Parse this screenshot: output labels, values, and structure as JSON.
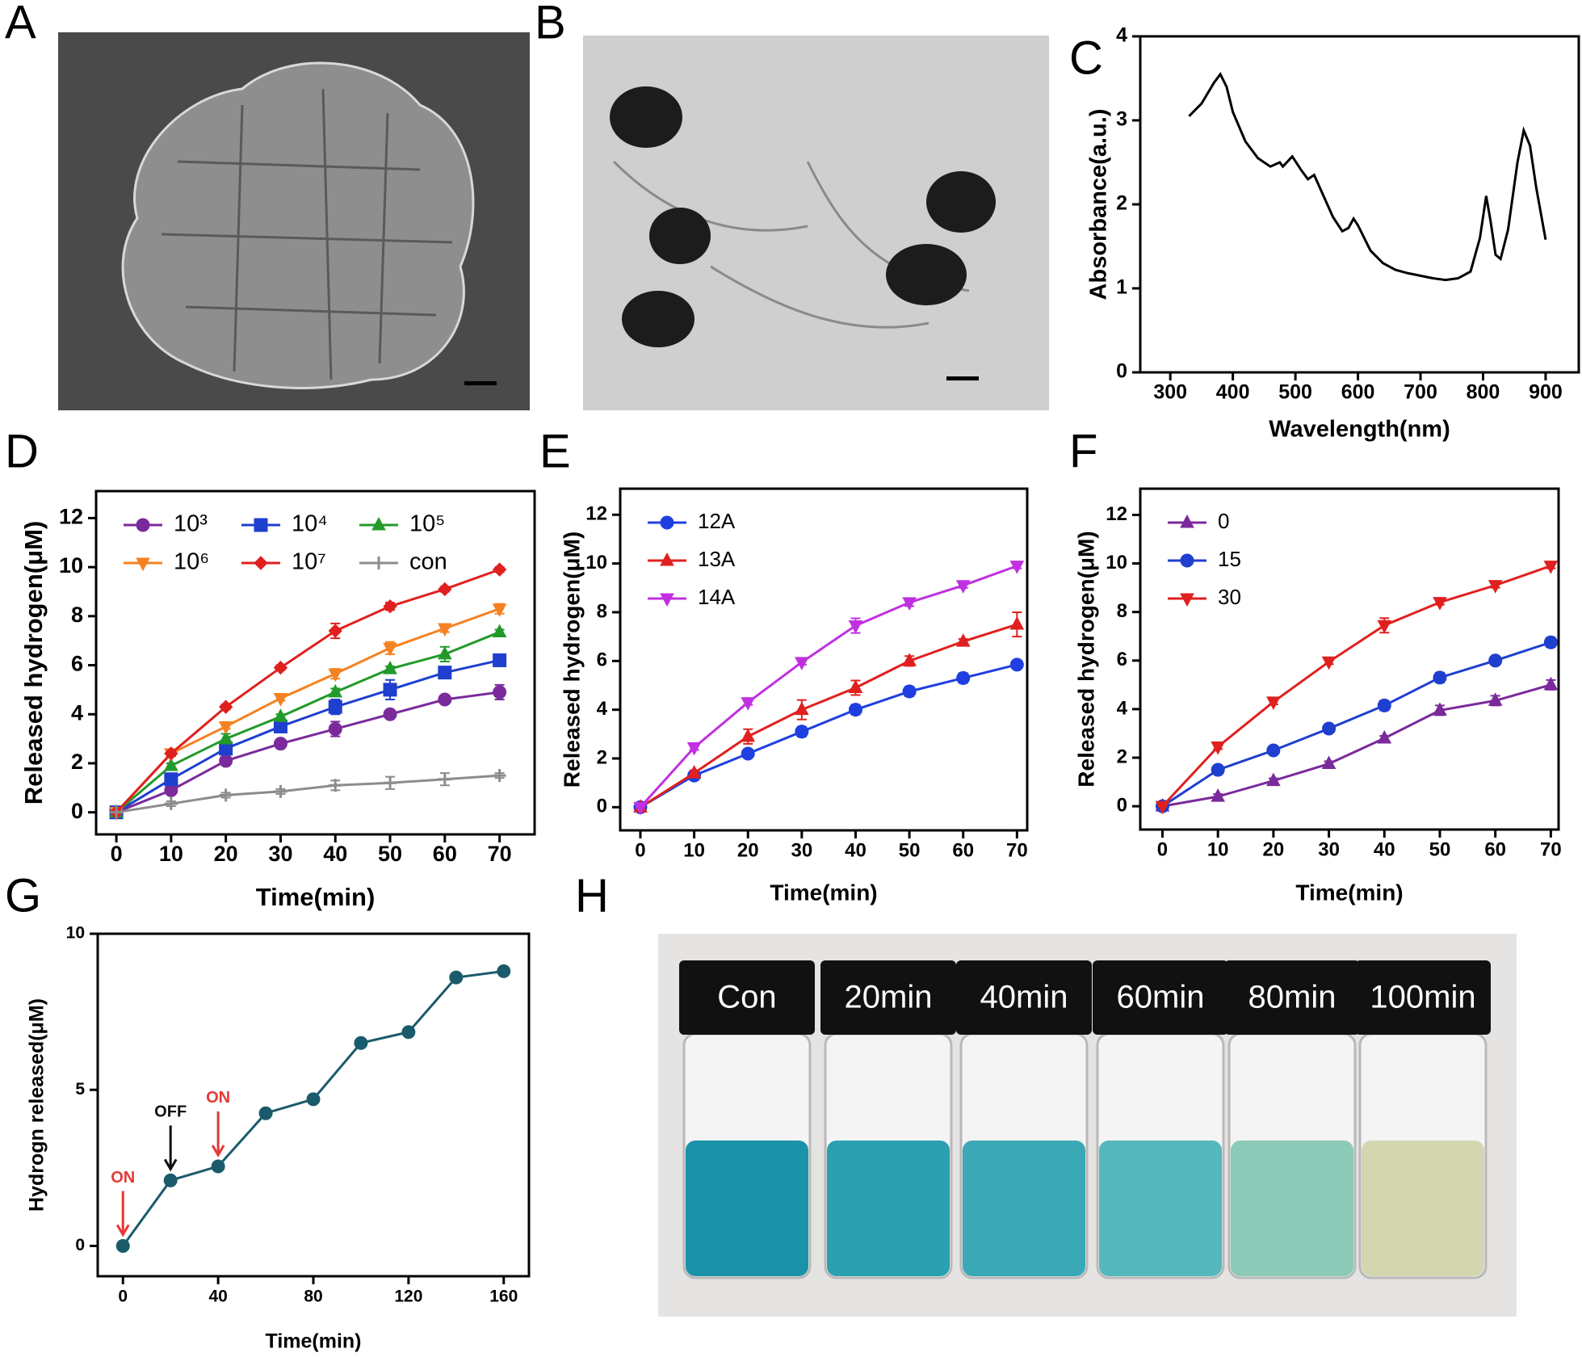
{
  "chart_data": [
    {
      "panel": "C",
      "type": "line",
      "xlabel": "Wavelength(nm)",
      "ylabel": "Absorbance(a.u.)",
      "color": "#000000",
      "x": [
        330,
        350,
        370,
        380,
        390,
        400,
        420,
        440,
        460,
        475,
        480,
        495,
        510,
        520,
        530,
        545,
        560,
        575,
        585,
        593,
        600,
        620,
        640,
        660,
        680,
        700,
        720,
        740,
        760,
        780,
        795,
        805,
        812,
        820,
        828,
        840,
        855,
        865,
        875,
        885,
        900
      ],
      "values": [
        3.05,
        3.2,
        3.45,
        3.55,
        3.4,
        3.1,
        2.75,
        2.55,
        2.45,
        2.5,
        2.45,
        2.57,
        2.4,
        2.3,
        2.35,
        2.1,
        1.85,
        1.68,
        1.72,
        1.83,
        1.75,
        1.45,
        1.3,
        1.22,
        1.18,
        1.15,
        1.12,
        1.1,
        1.12,
        1.2,
        1.6,
        2.1,
        1.8,
        1.4,
        1.35,
        1.7,
        2.5,
        2.88,
        2.7,
        2.2,
        1.58
      ],
      "xlim": [
        252,
        953
      ],
      "ylim": [
        0,
        4
      ],
      "xticks": [
        300,
        400,
        500,
        600,
        700,
        800,
        900
      ],
      "yticks": [
        0,
        1,
        2,
        3,
        4
      ]
    },
    {
      "panel": "D",
      "type": "line",
      "xlabel": "Time(min)",
      "ylabel": "Released hydrogen(μM)",
      "legend": "upper left",
      "legend_columns": 3,
      "x": [
        0,
        10,
        20,
        30,
        40,
        50,
        60,
        70
      ],
      "xlim": [
        -3.7,
        76.4
      ],
      "ylim": [
        -0.9,
        13.1
      ],
      "xticks": [
        0,
        10,
        20,
        30,
        40,
        50,
        60,
        70
      ],
      "yticks": [
        0,
        2,
        4,
        6,
        8,
        10,
        12
      ],
      "series": [
        {
          "name": "10³",
          "color": "#7b2a9b",
          "marker": "circle",
          "values": [
            0,
            0.9,
            2.1,
            2.8,
            3.4,
            4.0,
            4.6,
            4.9
          ],
          "errors": [
            0,
            0.1,
            0.15,
            0.1,
            0.3,
            0.1,
            0.1,
            0.3
          ]
        },
        {
          "name": "10⁴",
          "color": "#1f3fcf",
          "marker": "square",
          "values": [
            0,
            1.35,
            2.6,
            3.5,
            4.3,
            5.0,
            5.7,
            6.2
          ],
          "errors": [
            0,
            0.15,
            0.2,
            0.2,
            0.3,
            0.4,
            0.15,
            0.1
          ]
        },
        {
          "name": "10⁵",
          "color": "#229a2a",
          "marker": "triangle-up",
          "values": [
            0,
            1.9,
            3.0,
            3.9,
            4.9,
            5.85,
            6.45,
            7.35
          ],
          "errors": [
            0,
            0.1,
            0.2,
            0.1,
            0.15,
            0.1,
            0.3,
            0.1
          ]
        },
        {
          "name": "10⁶",
          "color": "#f58220",
          "marker": "triangle-down",
          "values": [
            0,
            2.4,
            3.5,
            4.65,
            5.65,
            6.7,
            7.5,
            8.3
          ],
          "errors": [
            0,
            0.1,
            0.1,
            0.1,
            0.2,
            0.25,
            0.15,
            0.2
          ]
        },
        {
          "name": "10⁷",
          "color": "#e0201e",
          "marker": "diamond",
          "values": [
            0,
            2.4,
            4.3,
            5.9,
            7.4,
            8.4,
            9.1,
            9.9
          ],
          "errors": [
            0,
            0.1,
            0.1,
            0.1,
            0.3,
            0.15,
            0.1,
            0.1
          ]
        },
        {
          "name": "con",
          "color": "#8c8c8c",
          "marker": "plus",
          "values": [
            0,
            0.35,
            0.7,
            0.85,
            1.1,
            1.2,
            1.35,
            1.5
          ],
          "errors": [
            0,
            0.1,
            0.1,
            0.1,
            0.2,
            0.25,
            0.25,
            0.1
          ]
        }
      ]
    },
    {
      "panel": "E",
      "type": "line",
      "xlabel": "Time(min)",
      "ylabel": "Released hydrogen(μM)",
      "legend": "upper left",
      "legend_columns": 1,
      "x": [
        0,
        10,
        20,
        30,
        40,
        50,
        60,
        70
      ],
      "xlim": [
        -3.75,
        71.9
      ],
      "ylim": [
        -0.95,
        13.07
      ],
      "xticks": [
        0,
        10,
        20,
        30,
        40,
        50,
        60,
        70
      ],
      "yticks": [
        0,
        2,
        4,
        6,
        8,
        10,
        12
      ],
      "series": [
        {
          "name": "12A",
          "color": "#1f3fe0",
          "marker": "circle",
          "values": [
            0,
            1.3,
            2.2,
            3.1,
            4.0,
            4.75,
            5.3,
            5.85
          ],
          "errors": [
            0,
            0.1,
            0.1,
            0.2,
            0.2,
            0.2,
            0.2,
            0.1
          ]
        },
        {
          "name": "13A",
          "color": "#e0201e",
          "marker": "triangle-up",
          "values": [
            0,
            1.4,
            2.9,
            4.0,
            4.9,
            6.0,
            6.8,
            7.5
          ],
          "errors": [
            0,
            0.1,
            0.3,
            0.4,
            0.3,
            0.2,
            0.1,
            0.5
          ]
        },
        {
          "name": "14A",
          "color": "#c030e0",
          "marker": "triangle-down",
          "values": [
            0,
            2.45,
            4.3,
            5.95,
            7.45,
            8.4,
            9.1,
            9.9
          ],
          "errors": [
            0,
            0.1,
            0.1,
            0.1,
            0.3,
            0.15,
            0.1,
            0.1
          ]
        }
      ]
    },
    {
      "panel": "F",
      "type": "line",
      "xlabel": "Time(min)",
      "ylabel": "Released hydrogen(μM)",
      "legend": "upper left",
      "legend_columns": 1,
      "x": [
        0,
        10,
        20,
        30,
        40,
        50,
        60,
        70
      ],
      "xlim": [
        -4,
        71.4
      ],
      "ylim": [
        -0.96,
        13.08
      ],
      "xticks": [
        0,
        10,
        20,
        30,
        40,
        50,
        60,
        70
      ],
      "yticks": [
        0,
        2,
        4,
        6,
        8,
        10,
        12
      ],
      "series": [
        {
          "name": "0",
          "color": "#7b2a9b",
          "marker": "triangle-up",
          "values": [
            0,
            0.4,
            1.05,
            1.75,
            2.8,
            3.95,
            4.35,
            5.0
          ],
          "errors": [
            0,
            0.1,
            0.1,
            0.1,
            0.1,
            0.2,
            0.2,
            0.2
          ]
        },
        {
          "name": "15",
          "color": "#1f3fcf",
          "marker": "circle",
          "values": [
            0,
            1.5,
            2.3,
            3.2,
            4.15,
            5.3,
            6.0,
            6.75
          ],
          "errors": [
            0,
            0.1,
            0.1,
            0.1,
            0.2,
            0.2,
            0.15,
            0.2
          ]
        },
        {
          "name": "30",
          "color": "#e0201e",
          "marker": "triangle-down",
          "values": [
            0,
            2.45,
            4.3,
            5.95,
            7.45,
            8.4,
            9.1,
            9.9
          ],
          "errors": [
            0,
            0.1,
            0.1,
            0.1,
            0.3,
            0.1,
            0.1,
            0.1
          ]
        }
      ]
    },
    {
      "panel": "G",
      "type": "line",
      "xlabel": "Time(min)",
      "ylabel": "Hydrogn released(μM)",
      "color": "#1a5b6b",
      "marker": "circle",
      "x": [
        0,
        20,
        40,
        60,
        80,
        100,
        120,
        140,
        160
      ],
      "values": [
        0,
        2.1,
        2.55,
        4.25,
        4.7,
        6.5,
        6.85,
        8.6,
        8.8
      ],
      "xlim": [
        -10.6,
        170.6
      ],
      "ylim": [
        -0.97,
        10
      ],
      "xticks": [
        0,
        40,
        80,
        120,
        160
      ],
      "yticks": [
        0,
        5,
        10
      ],
      "annotations": [
        {
          "text": "ON",
          "x": 0,
          "color": "#e53935"
        },
        {
          "text": "OFF",
          "x": 20,
          "color": "#111111"
        },
        {
          "text": "ON",
          "x": 40,
          "color": "#e53935"
        }
      ]
    }
  ],
  "images": [
    {
      "panel": "A"
    },
    {
      "panel": "B"
    },
    {
      "panel": "H",
      "labels": [
        "Con",
        "20min",
        "40min",
        "60min",
        "80min",
        "100min"
      ]
    }
  ]
}
